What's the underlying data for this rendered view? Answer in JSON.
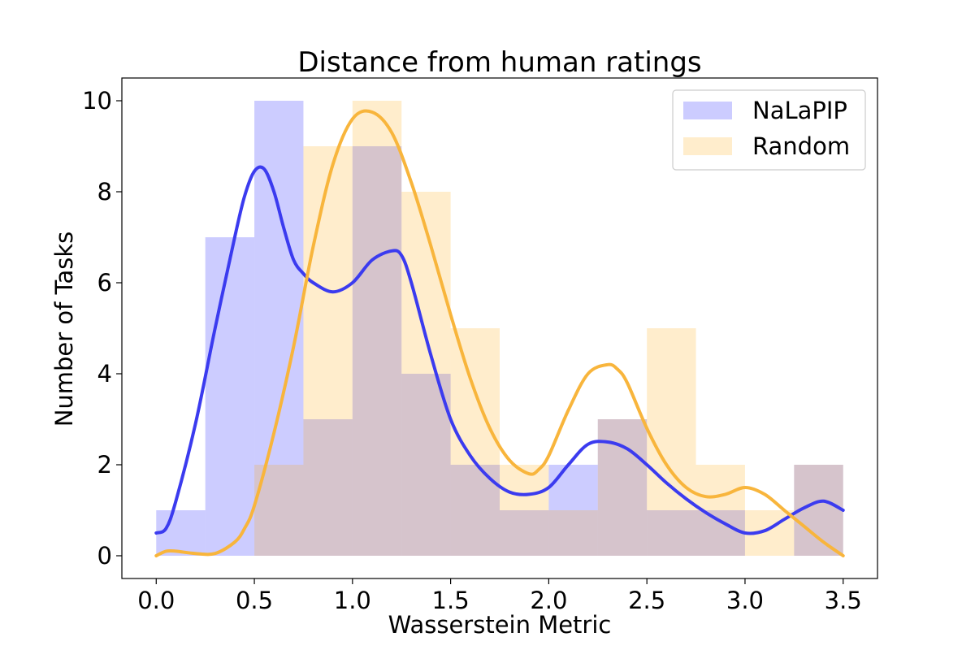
{
  "chart_data": {
    "type": "bar",
    "title": "Distance from human ratings",
    "xlabel": "Wasserstein Metric",
    "ylabel": "Number of Tasks",
    "xlim": [
      -0.175,
      3.675
    ],
    "ylim": [
      -0.5,
      10.5
    ],
    "xticks": [
      "0.0",
      "0.5",
      "1.0",
      "1.5",
      "2.0",
      "2.5",
      "3.0",
      "3.5"
    ],
    "yticks": [
      "0",
      "2",
      "4",
      "6",
      "8",
      "10"
    ],
    "bin_edges": [
      0.0,
      0.25,
      0.5,
      0.75,
      1.0,
      1.25,
      1.5,
      1.75,
      2.0,
      2.25,
      2.5,
      2.75,
      3.0,
      3.25,
      3.5
    ],
    "grid": false,
    "legend_position": "upper right",
    "series": [
      {
        "name": "NaLaPIP",
        "color": "#0000ff",
        "fill_opacity": 0.2,
        "line_color": "#3b3bef",
        "counts": [
          1,
          7,
          10,
          3,
          9,
          4,
          2,
          1,
          2,
          3,
          1,
          1,
          0,
          2
        ],
        "kde": {
          "x": [
            0.0,
            0.05,
            0.1,
            0.2,
            0.3,
            0.4,
            0.45,
            0.5,
            0.55,
            0.6,
            0.65,
            0.7,
            0.75,
            0.8,
            0.9,
            1.0,
            1.1,
            1.2,
            1.25,
            1.3,
            1.4,
            1.5,
            1.6,
            1.7,
            1.8,
            1.9,
            2.0,
            2.1,
            2.2,
            2.3,
            2.4,
            2.5,
            2.6,
            2.7,
            2.8,
            2.9,
            3.0,
            3.1,
            3.2,
            3.3,
            3.4,
            3.5
          ],
          "y": [
            0.5,
            0.6,
            1.2,
            2.9,
            5.0,
            7.0,
            7.9,
            8.45,
            8.5,
            8.0,
            7.2,
            6.5,
            6.2,
            6.0,
            5.8,
            6.0,
            6.5,
            6.7,
            6.6,
            6.0,
            4.4,
            3.0,
            2.2,
            1.7,
            1.4,
            1.35,
            1.5,
            2.0,
            2.45,
            2.5,
            2.35,
            2.0,
            1.6,
            1.25,
            0.95,
            0.7,
            0.5,
            0.55,
            0.8,
            1.05,
            1.2,
            1.0
          ]
        }
      },
      {
        "name": "Random",
        "color": "#ffa500",
        "fill_opacity": 0.2,
        "line_color": "#f8b53c",
        "counts": [
          0,
          0,
          2,
          9,
          10,
          8,
          5,
          2,
          1,
          3,
          5,
          2,
          1,
          2
        ],
        "kde": {
          "x": [
            0.0,
            0.05,
            0.1,
            0.2,
            0.3,
            0.4,
            0.45,
            0.5,
            0.6,
            0.7,
            0.8,
            0.9,
            1.0,
            1.1,
            1.2,
            1.3,
            1.4,
            1.5,
            1.6,
            1.7,
            1.8,
            1.9,
            1.95,
            2.0,
            2.1,
            2.2,
            2.3,
            2.35,
            2.4,
            2.5,
            2.6,
            2.7,
            2.8,
            2.9,
            3.0,
            3.1,
            3.2,
            3.3,
            3.4,
            3.5
          ],
          "y": [
            0.0,
            0.1,
            0.1,
            0.05,
            0.05,
            0.3,
            0.6,
            1.1,
            2.7,
            4.6,
            6.8,
            8.6,
            9.6,
            9.75,
            9.3,
            8.2,
            6.8,
            5.3,
            3.9,
            2.8,
            2.1,
            1.8,
            1.9,
            2.2,
            3.2,
            4.0,
            4.2,
            4.1,
            3.8,
            2.8,
            2.0,
            1.5,
            1.3,
            1.35,
            1.5,
            1.35,
            1.0,
            0.65,
            0.3,
            0.0
          ]
        }
      }
    ]
  }
}
